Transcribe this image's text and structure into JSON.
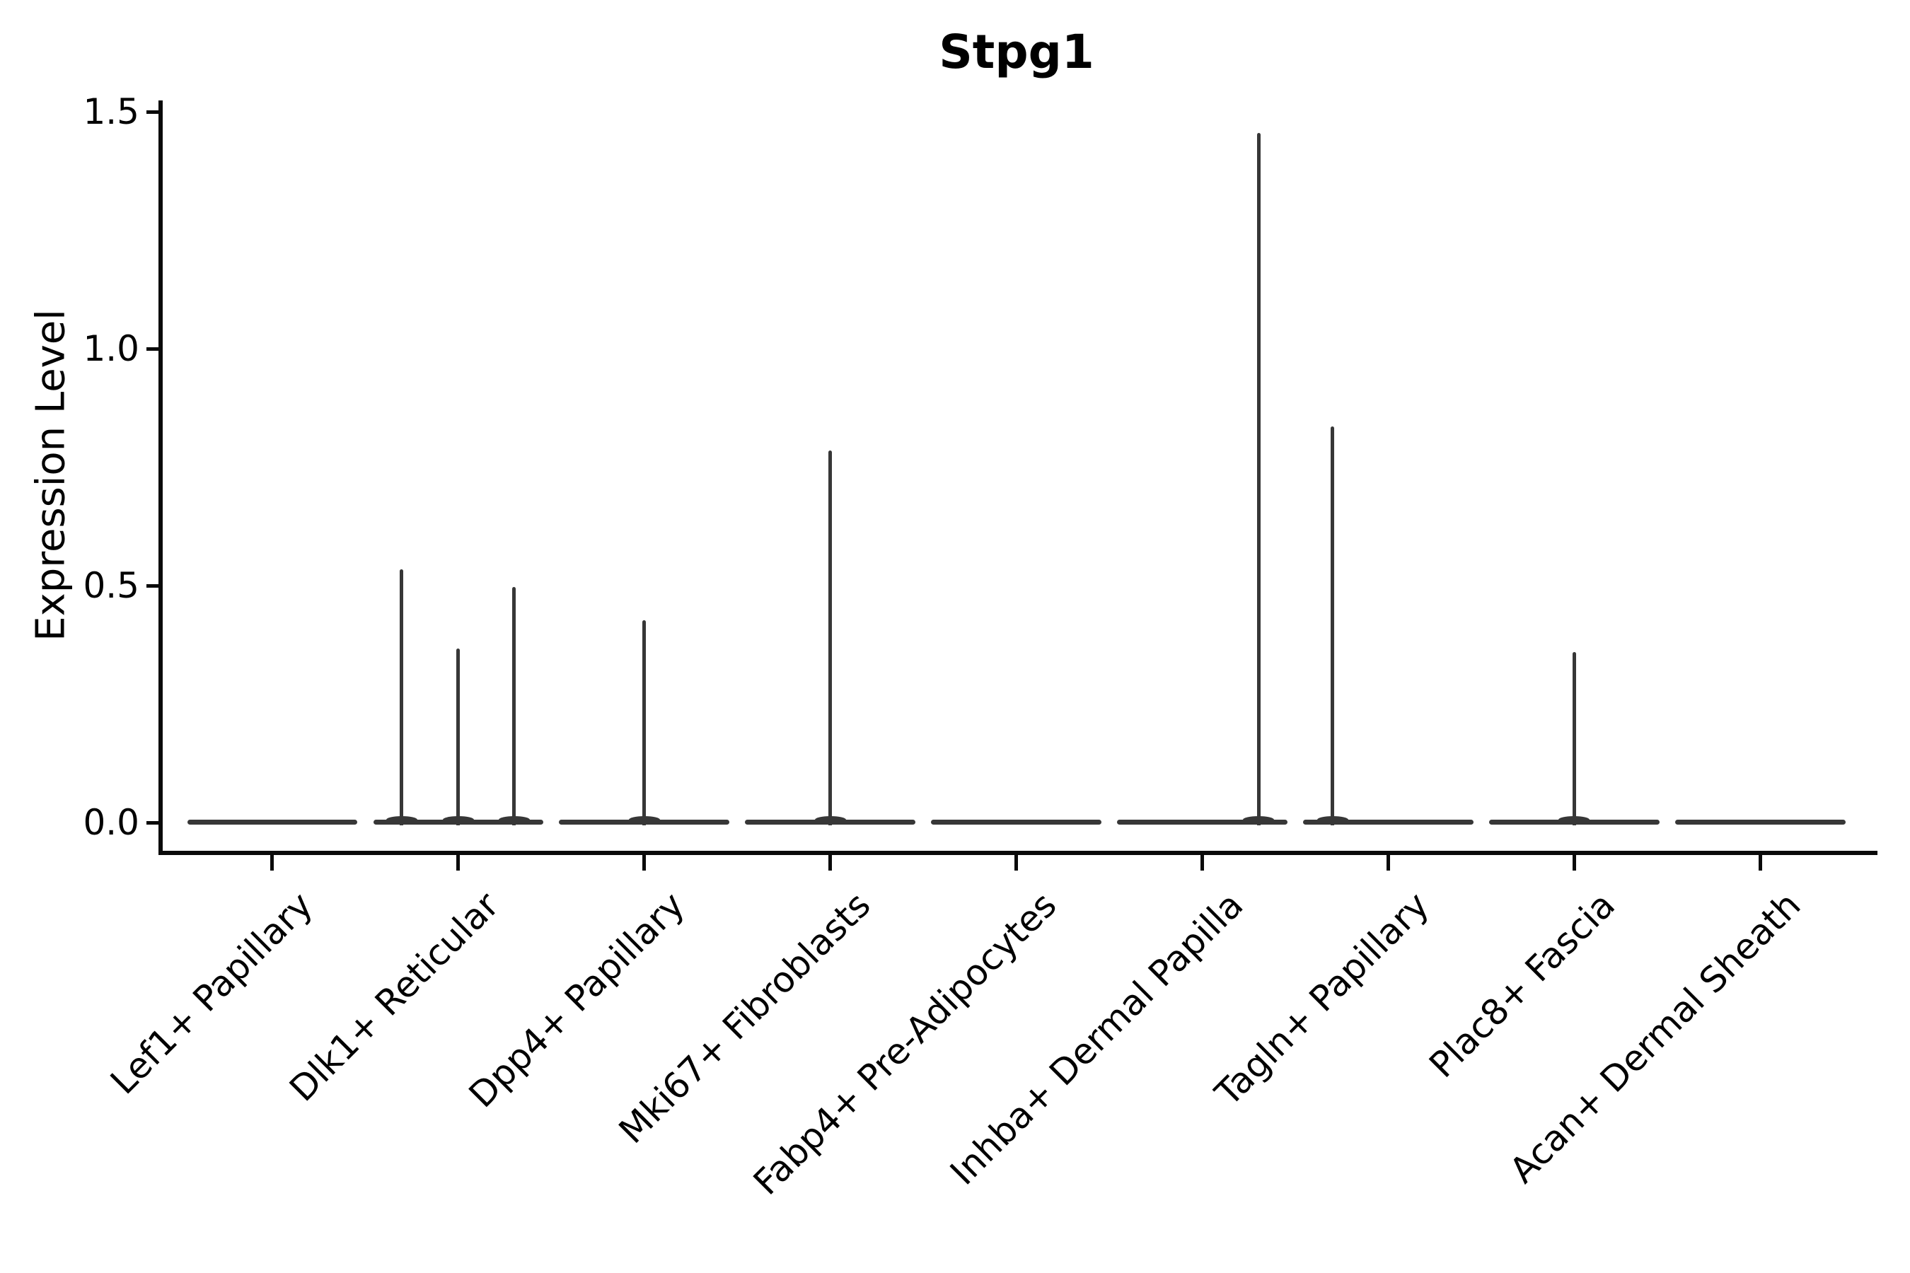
{
  "chart_data": {
    "type": "violin",
    "title": "Stpg1",
    "ylabel": "Expression Level",
    "xlabel": "",
    "grid": false,
    "legend": null,
    "yticks": [
      0.0,
      0.5,
      1.0,
      1.5
    ],
    "ytick_labels": [
      "0.0",
      "0.5",
      "1.0",
      "1.5"
    ],
    "ylim": [
      -0.067,
      1.524
    ],
    "xlim": [
      -0.6,
      8.63
    ],
    "body_halfwidth": 0.457,
    "categories": [
      "Lef1+ Papillary",
      "Dlk1+ Reticular",
      "Dpp4+ Papillary",
      "Mki67+ Fibroblasts",
      "Fabp4+ Pre-Adipocytes",
      "Inhba+ Dermal Papilla",
      "Tagln+ Papillary",
      "Plac8+ Fascia",
      "Acan+ Dermal Sheath"
    ],
    "violins": [
      {
        "label": "Lef1+ Papillary",
        "baseline_value": 0.0,
        "spikes": []
      },
      {
        "label": "Dlk1+ Reticular",
        "baseline_value": 0.0,
        "spikes": [
          {
            "offset": -0.304,
            "max": 0.534
          },
          {
            "offset": 0.0,
            "max": 0.367
          },
          {
            "offset": 0.3,
            "max": 0.497
          }
        ]
      },
      {
        "label": "Dpp4+ Papillary",
        "baseline_value": 0.0,
        "spikes": [
          {
            "offset": 0.0,
            "max": 0.427
          }
        ]
      },
      {
        "label": "Mki67+ Fibroblasts",
        "baseline_value": 0.0,
        "spikes": [
          {
            "offset": 0.0,
            "max": 0.785
          }
        ]
      },
      {
        "label": "Fabp4+ Pre-Adipocytes",
        "baseline_value": 0.0,
        "spikes": []
      },
      {
        "label": "Inhba+ Dermal Papilla",
        "baseline_value": 0.0,
        "spikes": [
          {
            "offset": 0.304,
            "max": 1.455
          }
        ]
      },
      {
        "label": "Tagln+ Papillary",
        "baseline_value": 0.0,
        "spikes": [
          {
            "offset": -0.3,
            "max": 0.836
          }
        ]
      },
      {
        "label": "Plac8+ Fascia",
        "baseline_value": 0.0,
        "spikes": [
          {
            "offset": 0.0,
            "max": 0.36
          }
        ]
      },
      {
        "label": "Acan+ Dermal Sheath",
        "baseline_value": 0.0,
        "spikes": []
      }
    ],
    "colors": {
      "background": "#ffffff",
      "axis": "#0a0a0a",
      "text": "#000000",
      "violin_stroke": "#373737"
    }
  }
}
